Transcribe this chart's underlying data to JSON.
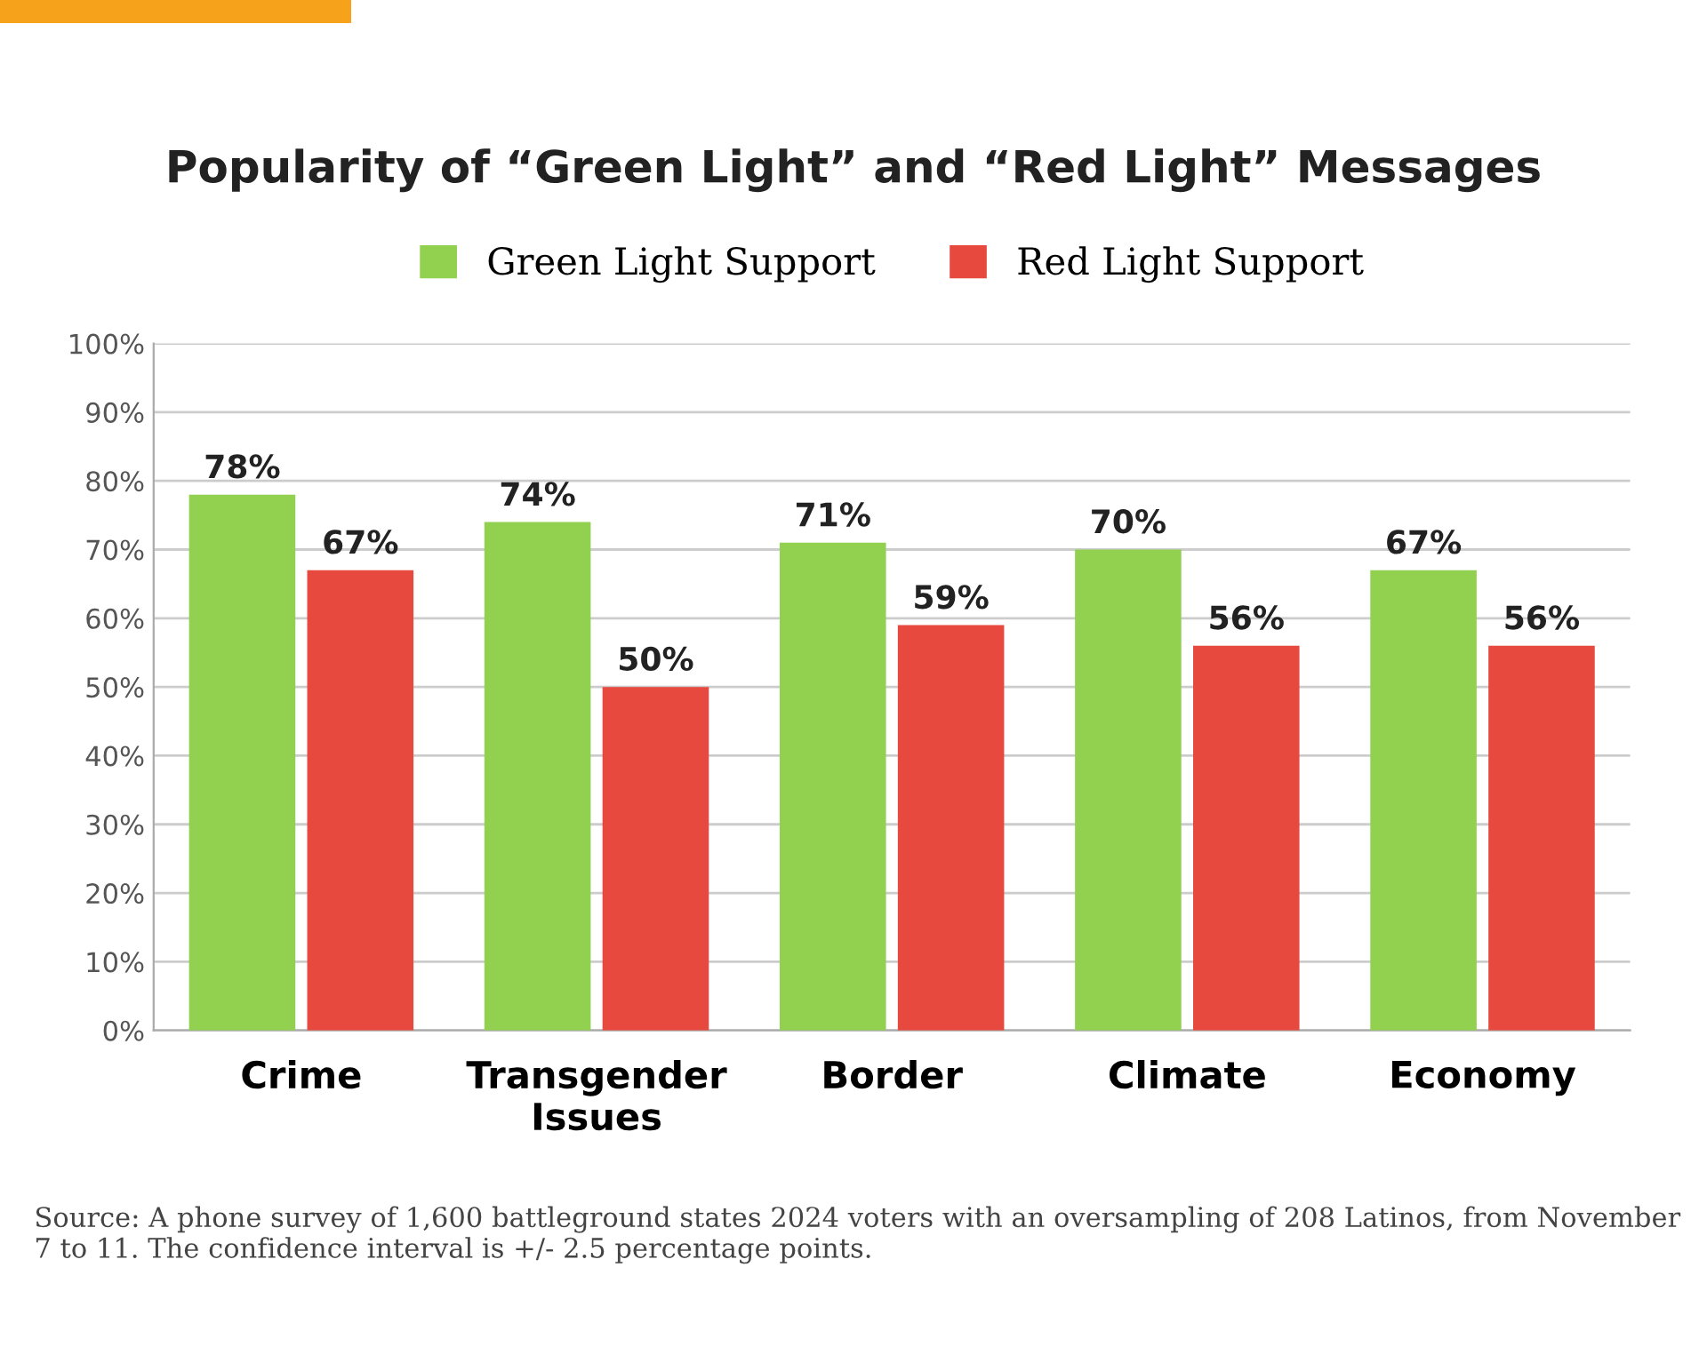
{
  "chart_data": {
    "type": "bar",
    "title": "Popularity of “Green Light” and “Red Light” Messages",
    "categories": [
      "Crime",
      "Transgender\nIssues",
      "Border",
      "Climate",
      "Economy"
    ],
    "series": [
      {
        "name": "Green Light Support",
        "color": "#92d050",
        "values": [
          78,
          74,
          71,
          70,
          67
        ],
        "value_labels": [
          "78%",
          "74%",
          "71%",
          "70%",
          "67%"
        ]
      },
      {
        "name": "Red Light Support",
        "color": "#e8493f",
        "values": [
          67,
          50,
          59,
          56,
          56
        ],
        "value_labels": [
          "67%",
          "50%",
          "59%",
          "56%",
          "56%"
        ]
      }
    ],
    "ylim": [
      0,
      100
    ],
    "yticks": [
      {
        "value": 0,
        "label": "0%"
      },
      {
        "value": 10,
        "label": "10%"
      },
      {
        "value": 20,
        "label": "20%"
      },
      {
        "value": 30,
        "label": "30%"
      },
      {
        "value": 40,
        "label": "40%"
      },
      {
        "value": 50,
        "label": "50%"
      },
      {
        "value": 60,
        "label": "60%"
      },
      {
        "value": 70,
        "label": "70%"
      },
      {
        "value": 80,
        "label": "80%"
      },
      {
        "value": 90,
        "label": "90%"
      },
      {
        "value": 100,
        "label": "100%"
      }
    ],
    "grid": "y",
    "legend": "top",
    "annotations": [
      "Source: A phone survey of 1,600 battleground states 2024 voters with an oversampling of 208 Latinos, from November 7 to 11. The confidence interval is +/- 2.5 percentage points."
    ]
  }
}
